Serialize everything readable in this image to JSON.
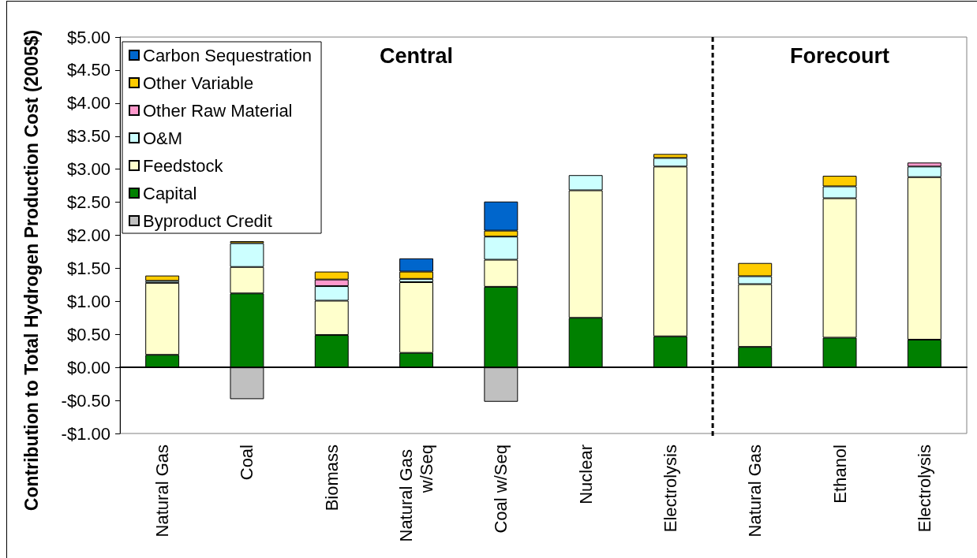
{
  "chart_data": {
    "type": "bar",
    "stacked": true,
    "ylabel": "Contribution to Total Hydrogen Production Cost (2005$)",
    "categories": [
      "Natural Gas",
      "Coal",
      "Biomass",
      "Natural Gas w/Seq",
      "Coal w/Seq",
      "Nuclear",
      "Electrolysis",
      "Natural Gas",
      "Ethanol",
      "Electrolysis"
    ],
    "series": [
      {
        "name": "Byproduct Credit",
        "color": "#c0c0c0",
        "values": [
          null,
          -0.48,
          null,
          null,
          -0.52,
          null,
          null,
          null,
          null,
          null
        ]
      },
      {
        "name": "Capital",
        "color": "#008000",
        "values": [
          0.19,
          1.12,
          0.49,
          0.22,
          1.22,
          0.75,
          0.47,
          0.31,
          0.45,
          0.42
        ]
      },
      {
        "name": "Feedstock",
        "color": "#ffffcc",
        "values": [
          1.09,
          0.4,
          0.52,
          1.07,
          0.41,
          1.93,
          2.57,
          0.95,
          2.11,
          2.46
        ]
      },
      {
        "name": "O&M",
        "color": "#ccffff",
        "values": [
          0.03,
          0.36,
          0.22,
          0.05,
          0.35,
          0.23,
          0.13,
          0.12,
          0.18,
          0.16
        ]
      },
      {
        "name": "Other Raw Material",
        "color": "#ff99cc",
        "values": [
          null,
          null,
          0.1,
          null,
          null,
          null,
          null,
          null,
          null,
          0.06
        ]
      },
      {
        "name": "Other Variable",
        "color": "#ffcc00",
        "values": [
          0.08,
          0.03,
          0.12,
          0.11,
          0.09,
          null,
          0.06,
          0.2,
          0.16,
          null
        ]
      },
      {
        "name": "Carbon Sequestration",
        "color": "#0066cc",
        "values": [
          null,
          null,
          null,
          0.2,
          0.44,
          null,
          null,
          null,
          null,
          null
        ]
      }
    ],
    "ylim": [
      -1,
      5
    ],
    "yticks": [
      {
        "value": -1,
        "label": "-$1.00"
      },
      {
        "value": -0.5,
        "label": "-$0.50"
      },
      {
        "value": 0,
        "label": "$0.00"
      },
      {
        "value": 0.5,
        "label": "$0.50"
      },
      {
        "value": 1,
        "label": "$1.00"
      },
      {
        "value": 1.5,
        "label": "$1.50"
      },
      {
        "value": 2,
        "label": "$2.00"
      },
      {
        "value": 2.5,
        "label": "$2.50"
      },
      {
        "value": 3,
        "label": "$3.00"
      },
      {
        "value": 3.5,
        "label": "$3.50"
      },
      {
        "value": 4,
        "label": "$4.00"
      },
      {
        "value": 4.5,
        "label": "$4.50"
      },
      {
        "value": 5,
        "label": "$5.00"
      }
    ],
    "legend": "top left",
    "annotations": [
      "Central",
      "Forecourt"
    ]
  }
}
